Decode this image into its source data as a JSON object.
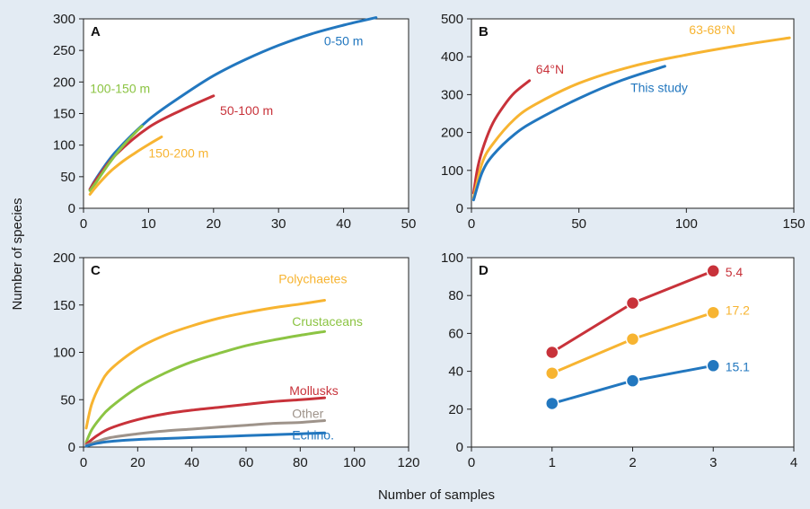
{
  "figure": {
    "ylabel": "Number of species",
    "xlabel": "Number of samples",
    "background": "#e3ebf3"
  },
  "chart_data": [
    {
      "panel": "A",
      "type": "line",
      "xlim": [
        0,
        50
      ],
      "ylim": [
        0,
        300
      ],
      "xticks": [
        0,
        10,
        20,
        30,
        40,
        50
      ],
      "yticks": [
        0,
        50,
        100,
        150,
        200,
        250,
        300
      ],
      "series": [
        {
          "name": "0-50 m",
          "color": "#2277bf",
          "x": [
            1,
            2,
            5,
            10,
            15,
            20,
            25,
            30,
            35,
            40,
            45
          ],
          "y": [
            30,
            48,
            90,
            140,
            177,
            210,
            236,
            258,
            276,
            290,
            302
          ]
        },
        {
          "name": "50-100 m",
          "color": "#c8323a",
          "x": [
            1,
            2,
            5,
            10,
            15,
            20
          ],
          "y": [
            30,
            46,
            85,
            128,
            155,
            178
          ]
        },
        {
          "name": "100-150 m",
          "color": "#8cc443",
          "x": [
            1,
            2,
            4,
            6,
            8,
            9
          ],
          "y": [
            28,
            42,
            72,
            98,
            120,
            130
          ]
        },
        {
          "name": "150-200 m",
          "color": "#f7b431",
          "x": [
            1,
            2,
            4,
            6,
            8,
            10,
            12
          ],
          "y": [
            22,
            35,
            57,
            74,
            88,
            101,
            113
          ]
        }
      ]
    },
    {
      "panel": "B",
      "type": "line",
      "xlim": [
        0,
        150
      ],
      "ylim": [
        0,
        500
      ],
      "xticks": [
        0,
        50,
        100,
        150
      ],
      "yticks": [
        0,
        100,
        200,
        300,
        400,
        500
      ],
      "series": [
        {
          "name": "64°N",
          "color": "#c8323a",
          "x": [
            1,
            3,
            6,
            10,
            15,
            20,
            27
          ],
          "y": [
            40,
            110,
            170,
            225,
            270,
            305,
            337
          ]
        },
        {
          "name": "63-68°N",
          "color": "#f7b431",
          "x": [
            1,
            5,
            10,
            20,
            30,
            50,
            75,
            100,
            125,
            148
          ],
          "y": [
            28,
            120,
            170,
            235,
            275,
            330,
            375,
            405,
            430,
            450
          ]
        },
        {
          "name": "This study",
          "color": "#2277bf",
          "x": [
            1,
            5,
            10,
            20,
            30,
            50,
            70,
            90
          ],
          "y": [
            22,
            95,
            140,
            195,
            232,
            290,
            338,
            375
          ]
        }
      ]
    },
    {
      "panel": "C",
      "type": "line",
      "xlim": [
        0,
        120
      ],
      "ylim": [
        0,
        200
      ],
      "xticks": [
        0,
        20,
        40,
        60,
        80,
        100,
        120
      ],
      "yticks": [
        0,
        50,
        100,
        150,
        200
      ],
      "series": [
        {
          "name": "Polychaetes",
          "color": "#f7b431",
          "x": [
            1,
            3,
            6,
            10,
            20,
            30,
            40,
            50,
            60,
            70,
            80,
            89
          ],
          "y": [
            20,
            45,
            65,
            82,
            104,
            118,
            128,
            136,
            142,
            147,
            151,
            155
          ]
        },
        {
          "name": "Crustaceans",
          "color": "#8cc443",
          "x": [
            1,
            3,
            6,
            10,
            20,
            30,
            40,
            50,
            60,
            70,
            80,
            89
          ],
          "y": [
            5,
            18,
            30,
            42,
            63,
            78,
            90,
            99,
            107,
            113,
            118,
            122
          ]
        },
        {
          "name": "Mollusks",
          "color": "#c8323a",
          "x": [
            1,
            5,
            10,
            20,
            30,
            40,
            50,
            60,
            70,
            80,
            89
          ],
          "y": [
            3,
            12,
            20,
            29,
            35,
            39,
            42,
            45,
            48,
            50,
            52
          ]
        },
        {
          "name": "Other",
          "color": "#9e938a",
          "x": [
            1,
            5,
            10,
            20,
            30,
            40,
            50,
            60,
            70,
            80,
            89
          ],
          "y": [
            2,
            6,
            10,
            14,
            17,
            19,
            21,
            23,
            25,
            26,
            28
          ]
        },
        {
          "name": "Echino.",
          "color": "#2277bf",
          "x": [
            1,
            5,
            10,
            20,
            30,
            40,
            50,
            60,
            70,
            80,
            89
          ],
          "y": [
            1,
            4,
            6,
            8,
            9,
            10,
            11,
            12,
            13,
            14,
            15
          ]
        }
      ]
    },
    {
      "panel": "D",
      "type": "line",
      "markers": true,
      "xlim": [
        0,
        4
      ],
      "ylim": [
        0,
        100
      ],
      "xticks": [
        0,
        1,
        2,
        3,
        4
      ],
      "yticks": [
        0,
        20,
        40,
        60,
        80,
        100
      ],
      "series": [
        {
          "name": "5.4",
          "color": "#c8323a",
          "x": [
            1,
            2,
            3
          ],
          "y": [
            50,
            76,
            93
          ]
        },
        {
          "name": "17.2",
          "color": "#f7b431",
          "x": [
            1,
            2,
            3
          ],
          "y": [
            39,
            57,
            71
          ]
        },
        {
          "name": "15.1",
          "color": "#2277bf",
          "x": [
            1,
            2,
            3
          ],
          "y": [
            23,
            35,
            43
          ]
        }
      ]
    }
  ]
}
